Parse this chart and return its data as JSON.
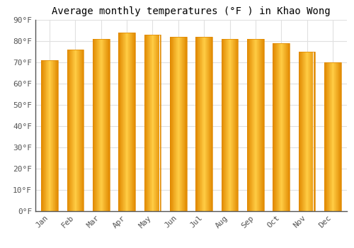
{
  "title": "Average monthly temperatures (°F ) in Khao Wong",
  "months": [
    "Jan",
    "Feb",
    "Mar",
    "Apr",
    "May",
    "Jun",
    "Jul",
    "Aug",
    "Sep",
    "Oct",
    "Nov",
    "Dec"
  ],
  "values": [
    71,
    76,
    81,
    84,
    83,
    82,
    82,
    81,
    81,
    79,
    75,
    70
  ],
  "bar_color_light": "#FFD060",
  "bar_color_main": "#FFAA00",
  "bar_color_dark": "#E08800",
  "background_color": "#FFFFFF",
  "grid_color": "#E0E0E0",
  "ylim": [
    0,
    90
  ],
  "yticks": [
    0,
    10,
    20,
    30,
    40,
    50,
    60,
    70,
    80,
    90
  ],
  "ytick_labels": [
    "0°F",
    "10°F",
    "20°F",
    "30°F",
    "40°F",
    "50°F",
    "60°F",
    "70°F",
    "80°F",
    "90°F"
  ],
  "title_fontsize": 10,
  "tick_fontsize": 8,
  "font_family": "monospace"
}
